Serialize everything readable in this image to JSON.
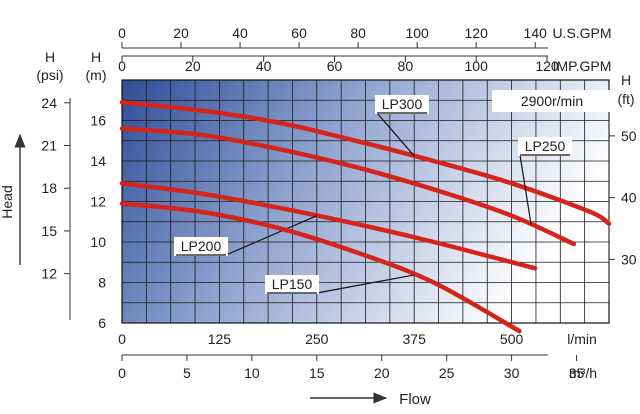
{
  "chart_data": {
    "type": "line",
    "title": "",
    "annotation": "2900r/min",
    "axes": {
      "bottom_lmin": {
        "label": "l/min",
        "ticks": [
          0,
          125,
          250,
          375,
          500
        ],
        "range": [
          0,
          625
        ]
      },
      "bottom_m3h": {
        "label": "m³/h",
        "ticks": [
          0,
          5,
          10,
          15,
          20,
          25,
          30,
          35
        ],
        "range": [
          0,
          37.5
        ]
      },
      "top_usgpm": {
        "label": "U.S.GPM",
        "ticks": [
          0,
          20,
          40,
          60,
          80,
          100,
          120,
          140
        ],
        "range": [
          0,
          165
        ]
      },
      "top_impgpm": {
        "label": "IMP.GPM",
        "ticks": [
          0,
          20,
          40,
          60,
          80,
          100,
          120
        ],
        "range": [
          0,
          137.5
        ]
      },
      "left_m": {
        "label": "H",
        "unit": "(m)",
        "ticks": [
          6,
          8,
          10,
          12,
          14,
          16
        ],
        "range": [
          6,
          18
        ]
      },
      "left_psi": {
        "label": "H",
        "unit": "(psi)",
        "ticks": [
          12,
          15,
          18,
          21,
          24
        ]
      },
      "right_ft": {
        "label": "H",
        "unit": "(ft)",
        "ticks": [
          30,
          40,
          50
        ]
      }
    },
    "xlabel": "Flow",
    "ylabel": "Head",
    "grid": true,
    "series": [
      {
        "name": "LP300",
        "x": [
          0,
          100,
          200,
          300,
          400,
          500,
          600,
          625
        ],
        "y": [
          16.9,
          16.5,
          15.9,
          15.0,
          14.0,
          12.9,
          11.5,
          10.9
        ]
      },
      {
        "name": "LP250",
        "x": [
          0,
          100,
          200,
          300,
          400,
          500,
          580
        ],
        "y": [
          15.6,
          15.3,
          14.6,
          13.7,
          12.6,
          11.3,
          9.9
        ]
      },
      {
        "name": "LP200",
        "x": [
          0,
          100,
          200,
          300,
          400,
          530
        ],
        "y": [
          12.9,
          12.4,
          11.7,
          10.9,
          10.0,
          8.7
        ]
      },
      {
        "name": "LP150",
        "x": [
          0,
          100,
          200,
          300,
          400,
          510
        ],
        "y": [
          11.9,
          11.5,
          10.7,
          9.5,
          8.0,
          5.6
        ]
      }
    ]
  }
}
